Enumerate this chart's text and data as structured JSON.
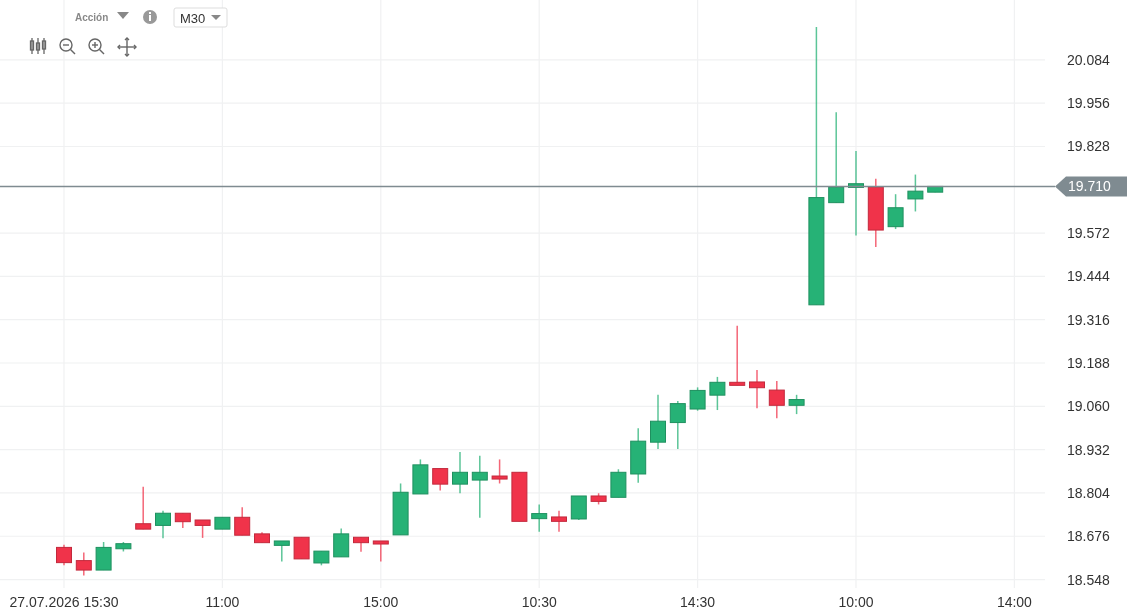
{
  "chart_data": {
    "type": "candlestick",
    "annotations": [
      "Acción",
      "M30"
    ],
    "categories": [
      "27.07.2026 15:30",
      null,
      null,
      null,
      null,
      null,
      null,
      null,
      "11:00",
      null,
      null,
      null,
      null,
      null,
      null,
      null,
      "15:00",
      null,
      null,
      null,
      null,
      null,
      null,
      null,
      "10:30",
      null,
      null,
      null,
      null,
      null,
      null,
      null,
      "14:30",
      null,
      null,
      null,
      null,
      null,
      null,
      null,
      "10:00",
      null,
      null,
      null,
      null,
      null,
      null,
      null,
      "14:00",
      null
    ],
    "ohlc": [
      [
        18.643,
        18.651,
        18.59,
        18.598
      ],
      [
        18.604,
        18.628,
        18.56,
        18.576
      ],
      [
        18.576,
        18.659,
        18.576,
        18.643
      ],
      [
        18.639,
        18.659,
        18.631,
        18.654
      ],
      [
        18.713,
        18.822,
        18.697,
        18.697
      ],
      [
        18.708,
        18.751,
        18.67,
        18.744
      ],
      [
        18.744,
        18.744,
        18.7,
        18.719
      ],
      [
        18.724,
        18.724,
        18.671,
        18.708
      ],
      [
        18.697,
        18.732,
        18.697,
        18.732
      ],
      [
        18.732,
        18.762,
        18.679,
        18.679
      ],
      [
        18.683,
        18.688,
        18.657,
        18.657
      ],
      [
        18.649,
        18.662,
        18.601,
        18.662
      ],
      [
        18.673,
        18.673,
        18.609,
        18.609
      ],
      [
        18.597,
        18.632,
        18.59,
        18.632
      ],
      [
        18.615,
        18.699,
        18.615,
        18.683
      ],
      [
        18.673,
        18.673,
        18.63,
        18.657
      ],
      [
        18.662,
        18.662,
        18.601,
        18.653
      ],
      [
        18.68,
        18.832,
        18.68,
        18.806
      ],
      [
        18.801,
        18.903,
        18.801,
        18.887
      ],
      [
        18.876,
        18.876,
        18.811,
        18.83
      ],
      [
        18.83,
        18.925,
        18.803,
        18.865
      ],
      [
        18.842,
        18.914,
        18.731,
        18.865
      ],
      [
        18.854,
        18.903,
        18.832,
        18.845
      ],
      [
        18.865,
        18.865,
        18.72,
        18.72
      ],
      [
        18.728,
        18.77,
        18.689,
        18.743
      ],
      [
        18.733,
        18.751,
        18.689,
        18.72
      ],
      [
        18.727,
        18.795,
        18.724,
        18.795
      ],
      [
        18.795,
        18.803,
        18.77,
        18.779
      ],
      [
        18.791,
        18.874,
        18.791,
        18.865
      ],
      [
        18.86,
        18.995,
        18.834,
        18.957
      ],
      [
        18.954,
        19.094,
        18.934,
        19.016
      ],
      [
        19.012,
        19.076,
        18.934,
        19.068
      ],
      [
        19.052,
        19.116,
        19.047,
        19.107
      ],
      [
        19.093,
        19.147,
        19.049,
        19.131
      ],
      [
        19.131,
        19.298,
        19.122,
        19.122
      ],
      [
        19.132,
        19.167,
        19.054,
        19.115
      ],
      [
        19.108,
        19.135,
        19.025,
        19.063
      ],
      [
        19.063,
        19.094,
        19.037,
        19.08
      ],
      [
        19.36,
        20.181,
        19.36,
        19.677
      ],
      [
        19.662,
        19.929,
        19.662,
        19.708
      ],
      [
        19.707,
        19.815,
        19.565,
        19.718
      ],
      [
        19.708,
        19.733,
        19.531,
        19.581
      ],
      [
        19.591,
        19.687,
        19.584,
        19.647
      ],
      [
        19.673,
        19.745,
        19.636,
        19.696
      ],
      [
        19.693,
        19.71,
        19.693,
        19.71
      ],
      null,
      null,
      null,
      null,
      null
    ],
    "colors": [
      "#f0334a",
      "#f0334a",
      "#26b276",
      "#26b276",
      "#f0334a",
      "#26b276",
      "#f0334a",
      "#f0334a",
      "#26b276",
      "#f0334a",
      "#f0334a",
      "#26b276",
      "#f0334a",
      "#26b276",
      "#26b276",
      "#f0334a",
      "#f0334a",
      "#26b276",
      "#26b276",
      "#f0334a",
      "#26b276",
      "#26b276",
      "#f0334a",
      "#f0334a",
      "#26b276",
      "#f0334a",
      "#26b276",
      "#f0334a",
      "#26b276",
      "#26b276",
      "#26b276",
      "#26b276",
      "#26b276",
      "#26b276",
      "#f0334a",
      "#f0334a",
      "#f0334a",
      "#26b276",
      "#26b276",
      "#26b276",
      "#26b276",
      "#f0334a",
      "#26b276",
      "#26b276",
      "#26b276",
      null,
      null,
      null,
      null,
      null
    ],
    "ylim": [
      18.523,
      20.261
    ],
    "yticks": [
      18.548,
      18.676,
      18.804,
      18.932,
      {
        "value": 19.06,
        "label": "19.060"
      },
      19.188,
      19.316,
      19.444,
      19.572,
      19.828,
      19.956,
      20.084
    ],
    "ref_lines": [
      {
        "axis": "y",
        "value": 19.71,
        "label": "19.710",
        "color": "#7f8b91"
      }
    ],
    "grid": true
  }
}
